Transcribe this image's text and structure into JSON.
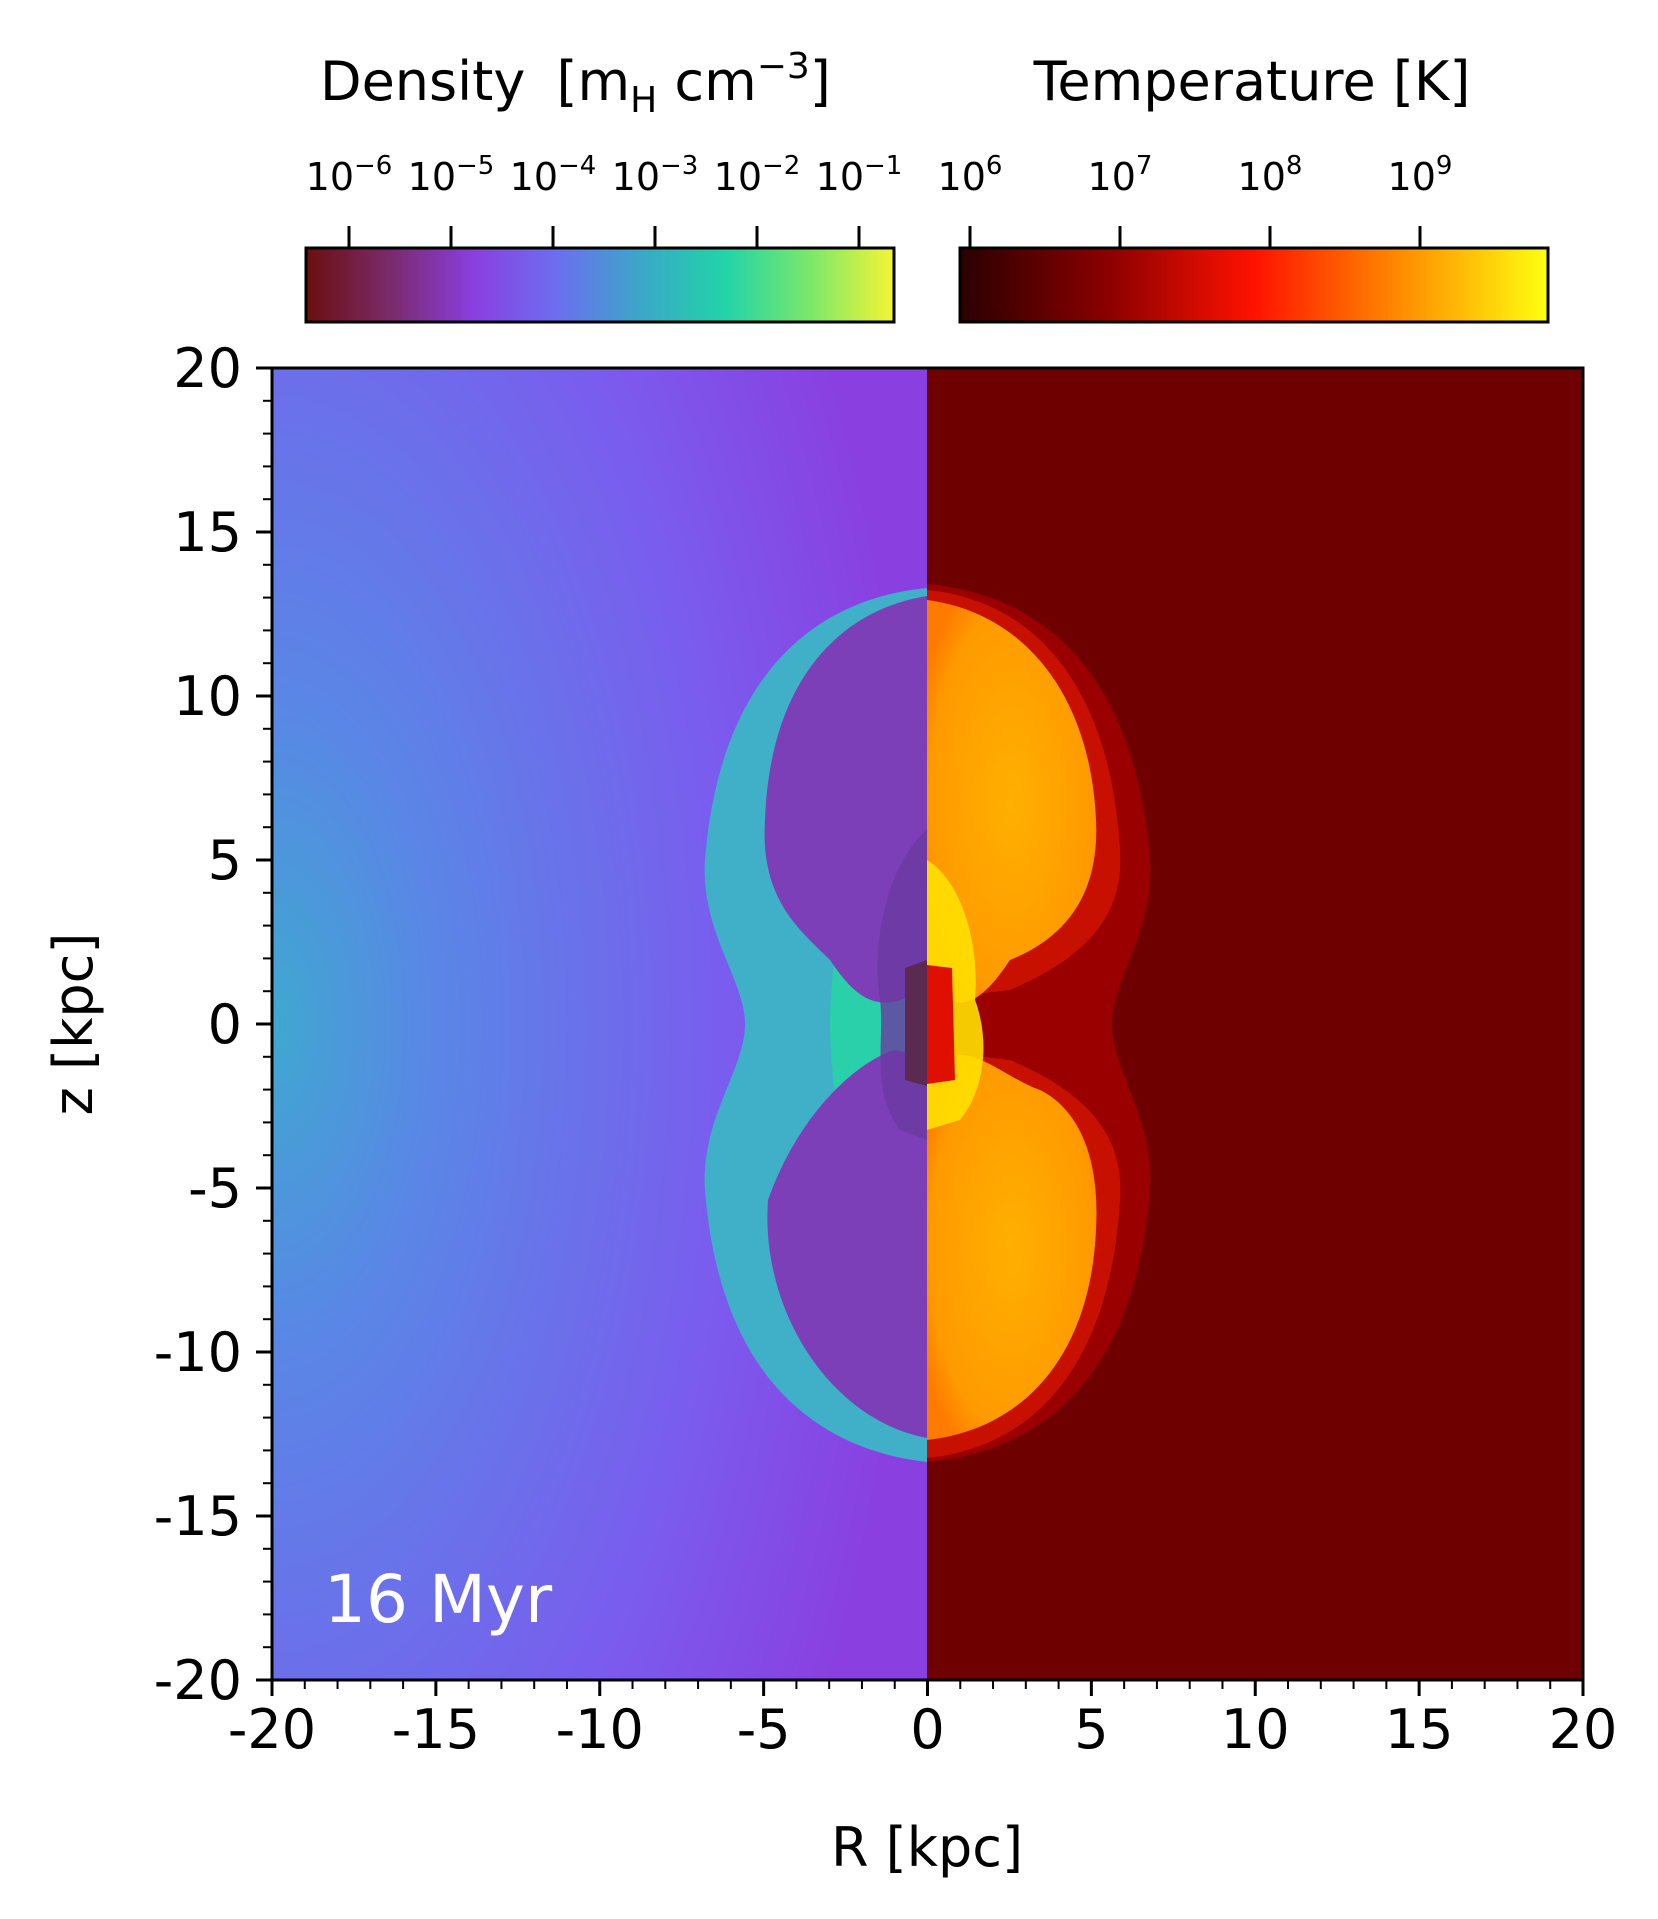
{
  "density_colorbar": {
    "title": "Density",
    "unit_open": "[m",
    "unit_sub": "H",
    "unit_mid": " cm",
    "unit_exp": "−3",
    "unit_close": "]",
    "ticks": [
      {
        "base": "10",
        "exp": "−6"
      },
      {
        "base": "10",
        "exp": "−5"
      },
      {
        "base": "10",
        "exp": "−4"
      },
      {
        "base": "10",
        "exp": "−3"
      },
      {
        "base": "10",
        "exp": "−2"
      },
      {
        "base": "10",
        "exp": "−1"
      }
    ],
    "colors": [
      "#6b0f0f",
      "#7a2a6a",
      "#8a3fe0",
      "#6b6ff0",
      "#3aa8c8",
      "#22d4a8",
      "#7be86a",
      "#f5f534"
    ]
  },
  "temperature_colorbar": {
    "title": "Temperature [K]",
    "ticks": [
      {
        "base": "10",
        "exp": "6"
      },
      {
        "base": "10",
        "exp": "7"
      },
      {
        "base": "10",
        "exp": "8"
      },
      {
        "base": "10",
        "exp": "9"
      }
    ],
    "colors": [
      "#2a0000",
      "#8a0000",
      "#ff1200",
      "#ff8c00",
      "#ffff10"
    ]
  },
  "plot": {
    "xlabel": "R [kpc]",
    "ylabel": "z [kpc]",
    "xlim": [
      -20,
      20
    ],
    "ylim": [
      -20,
      20
    ],
    "xticks": [
      "-20",
      "-15",
      "-10",
      "-5",
      "0",
      "5",
      "10",
      "15",
      "20"
    ],
    "yticks": [
      "20",
      "15",
      "10",
      "5",
      "0",
      "-5",
      "-10",
      "-15",
      "-20"
    ],
    "time_label": "16 Myr",
    "colors": {
      "density_background": "#7b55ee",
      "density_shell": "#3fb0c8",
      "density_interior": "#7d3fb8",
      "temperature_background": "#6e0000",
      "temperature_shell": "#c81000",
      "temperature_interior": "#ffa500"
    }
  }
}
